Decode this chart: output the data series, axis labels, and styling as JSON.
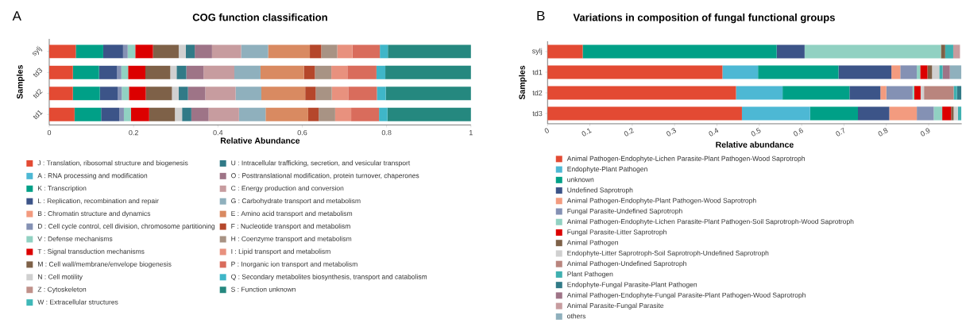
{
  "chart_data": [
    {
      "type": "bar",
      "orientation": "horizontal",
      "stacked": true,
      "title": "COG function classification",
      "xlabel": "Relative Abundance",
      "ylabel": "Samples",
      "annotations": [
        "A"
      ],
      "categories": [
        "sylj",
        "td3",
        "td2",
        "td1"
      ],
      "xlim": [
        0,
        1
      ],
      "xticks": [
        0,
        0.2,
        0.4,
        0.6,
        0.8,
        1
      ],
      "legend": "bottom",
      "series": [
        {
          "name": "J : Translation, ribosomal structure and biogenesis",
          "color": "#e34a33",
          "values": [
            0.063,
            0.056,
            0.056,
            0.06
          ]
        },
        {
          "name": "A : RNA processing and modification",
          "color": "#4db8d4",
          "values": [
            0,
            0,
            0,
            0
          ]
        },
        {
          "name": "K : Transcription",
          "color": "#00a087",
          "values": [
            0.065,
            0.062,
            0.064,
            0.063
          ]
        },
        {
          "name": "L : Replication, recombination and repair",
          "color": "#3c5488",
          "values": [
            0.047,
            0.043,
            0.042,
            0.043
          ]
        },
        {
          "name": "B : Chromatin structure and dynamics",
          "color": "#f39b7f",
          "values": [
            0,
            0,
            0,
            0
          ]
        },
        {
          "name": "D : Cell cycle control, cell division, chromosome partitioning",
          "color": "#8491b4",
          "values": [
            0.011,
            0.01,
            0.01,
            0.011
          ]
        },
        {
          "name": "V : Defense mechanisms",
          "color": "#91d1c2",
          "values": [
            0.018,
            0.016,
            0.017,
            0.017
          ]
        },
        {
          "name": "T : Signal transduction mechanisms",
          "color": "#dc0000",
          "values": [
            0.042,
            0.041,
            0.04,
            0.043
          ]
        },
        {
          "name": "M : Cell wall/membrane/envelope biogenesis",
          "color": "#7e6148",
          "values": [
            0.061,
            0.059,
            0.062,
            0.061
          ]
        },
        {
          "name": "N : Cell motility",
          "color": "#d0d0d0",
          "values": [
            0.017,
            0.015,
            0.016,
            0.017
          ]
        },
        {
          "name": "Z : Cytoskeleton",
          "color": "#c0918a",
          "values": [
            0,
            0,
            0,
            0
          ]
        },
        {
          "name": "W : Extracellular structures",
          "color": "#3fb8b8",
          "values": [
            0,
            0,
            0,
            0
          ]
        },
        {
          "name": "U : Intracellular trafficking, secretion, and vesicular transport",
          "color": "#317a87",
          "values": [
            0.021,
            0.023,
            0.022,
            0.022
          ]
        },
        {
          "name": "O : Posttranslational modification, protein turnover, chaperones",
          "color": "#9e7487",
          "values": [
            0.041,
            0.041,
            0.041,
            0.041
          ]
        },
        {
          "name": "C : Energy production and conversion",
          "color": "#c79c9f",
          "values": [
            0.069,
            0.073,
            0.072,
            0.072
          ]
        },
        {
          "name": "G : Carbohydrate transport and metabolism",
          "color": "#8fb0bd",
          "values": [
            0.064,
            0.062,
            0.061,
            0.063
          ]
        },
        {
          "name": "E : Amino acid transport and metabolism",
          "color": "#d98a61",
          "values": [
            0.099,
            0.103,
            0.104,
            0.101
          ]
        },
        {
          "name": "F : Nucleotide transport and metabolism",
          "color": "#b5472b",
          "values": [
            0.027,
            0.026,
            0.025,
            0.025
          ]
        },
        {
          "name": "H : Coenzyme transport and metabolism",
          "color": "#a89384",
          "values": [
            0.038,
            0.039,
            0.038,
            0.039
          ]
        },
        {
          "name": "I : Lipid transport and metabolism",
          "color": "#e8917e",
          "values": [
            0.036,
            0.038,
            0.039,
            0.038
          ]
        },
        {
          "name": "P : Inorganic ion transport and metabolism",
          "color": "#d96c5c",
          "values": [
            0.065,
            0.069,
            0.068,
            0.066
          ]
        },
        {
          "name": "Q : Secondary metabolites biosynthesis, transport and catabolism",
          "color": "#3fb6c8",
          "values": [
            0.019,
            0.021,
            0.021,
            0.02
          ]
        },
        {
          "name": "S : Function unknown",
          "color": "#25887f",
          "values": [
            0.197,
            0.203,
            0.202,
            0.198
          ]
        }
      ]
    },
    {
      "type": "bar",
      "orientation": "horizontal",
      "stacked": true,
      "title": "Variations in composition of fungal functional groups",
      "xlabel": "Relative abundance",
      "ylabel": "Samples",
      "annotations": [
        "B"
      ],
      "categories": [
        "sylj",
        "td1",
        "td2",
        "td3"
      ],
      "xlim": [
        0,
        0.978
      ],
      "xticks": [
        0,
        0.1,
        0.2,
        0.3,
        0.4,
        0.5,
        0.6,
        0.7,
        0.8,
        0.9
      ],
      "legend": "bottom",
      "series": [
        {
          "name": "Animal Pathogen-Endophyte-Lichen Parasite-Plant Pathogen-Wood Saprotroph",
          "color": "#e34a33",
          "values": [
            0.083,
            0.413,
            0.445,
            0.459
          ]
        },
        {
          "name": "Endophyte-Plant Pathogen",
          "color": "#4db8d4",
          "values": [
            null,
            0.084,
            0.11,
            0.161
          ]
        },
        {
          "name": "unknown",
          "color": "#00a087",
          "values": [
            0.458,
            0.19,
            0.158,
            0.113
          ]
        },
        {
          "name": "Undefined Saprotroph",
          "color": "#3c5488",
          "values": [
            0.066,
            0.125,
            0.073,
            0.074
          ]
        },
        {
          "name": "Animal Pathogen-Endophyte-Plant Pathogen-Wood Saprotroph",
          "color": "#f39b7f",
          "values": [
            null,
            0.021,
            0.014,
            0.065
          ]
        },
        {
          "name": "Fungal Parasite-Undefined Saprotroph",
          "color": "#8491b4",
          "values": [
            null,
            0.039,
            0.062,
            0.04
          ]
        },
        {
          "name": "Animal Pathogen-Endophyte-Lichen Parasite-Plant Pathogen-Soil Saprotroph-Wood Saprotroph",
          "color": "#91d1c2",
          "values": [
            0.322,
            0.008,
            0.004,
            0.02
          ]
        },
        {
          "name": "Fungal Parasite-Litter Saprotroph",
          "color": "#dc0000",
          "values": [
            null,
            0.017,
            0.015,
            0.021
          ]
        },
        {
          "name": "Animal Pathogen",
          "color": "#7e6148",
          "values": [
            0.01,
            0.011,
            null,
            0.006
          ]
        },
        {
          "name": "Endophyte-Litter Saprotroph-Soil Saprotroph-Undefined Saprotroph",
          "color": "#d0d0d0",
          "values": [
            null,
            0.017,
            0.008,
            0.01
          ]
        },
        {
          "name": "Animal Pathogen-Undefined Saprotroph",
          "color": "#b9857e",
          "values": [
            null,
            null,
            0.07,
            null
          ]
        },
        {
          "name": "Plant Pathogen",
          "color": "#3fb0b0",
          "values": [
            0.019,
            0.008,
            0.008,
            0.008
          ]
        },
        {
          "name": "Endophyte-Fungal Parasite-Plant Pathogen",
          "color": "#317a87",
          "values": [
            null,
            null,
            0.01,
            null
          ]
        },
        {
          "name": "Animal Pathogen-Endophyte-Fungal Parasite-Plant Pathogen-Wood Saprotroph",
          "color": "#9e7487",
          "values": [
            null,
            0.017,
            null,
            null
          ]
        },
        {
          "name": "Animal Parasite-Fungal Parasite",
          "color": "#c79c9f",
          "values": [
            0.016,
            null,
            null,
            null
          ]
        },
        {
          "name": "others",
          "color": "#8fb0bd",
          "values": [
            null,
            0.027,
            null,
            null
          ]
        }
      ]
    }
  ]
}
